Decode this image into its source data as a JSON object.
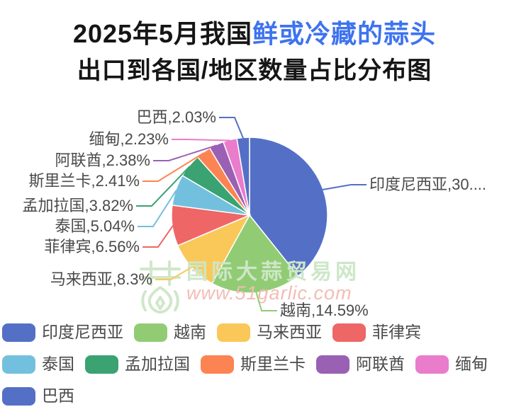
{
  "title": {
    "line1_black": "2025年5月我国",
    "line1_blue": "鲜或冷藏的蒜头",
    "line2": "出口到各国/地区数量占比分布图"
  },
  "watermark": {
    "site_name": "国际大蒜贸易网",
    "site_url": "www.51garlic.com"
  },
  "chart_data": {
    "type": "pie",
    "unit": "%",
    "start_angle": "top",
    "direction": "clockwise",
    "title": "2025年5月我国鲜或冷藏的蒜头出口到各国/地区数量占比分布图",
    "items": [
      {
        "id": "indonesia",
        "name": "印度尼西亚",
        "value": 30.64,
        "label": "印度尼西亚,30....",
        "color": "#5470c6"
      },
      {
        "id": "vietnam",
        "name": "越南",
        "value": 14.59,
        "label": "越南,14.59%",
        "color": "#91cc75"
      },
      {
        "id": "malaysia",
        "name": "马来西亚",
        "value": 8.3,
        "label": "马来西亚,8.3%",
        "color": "#fac858"
      },
      {
        "id": "philippines",
        "name": "菲律宾",
        "value": 6.56,
        "label": "菲律宾,6.56%",
        "color": "#ee6666"
      },
      {
        "id": "thailand",
        "name": "泰国",
        "value": 5.04,
        "label": "泰国,5.04%",
        "color": "#73c0de"
      },
      {
        "id": "bangladesh",
        "name": "孟加拉国",
        "value": 3.82,
        "label": "孟加拉国,3.82%",
        "color": "#3ba272"
      },
      {
        "id": "srilanka",
        "name": "斯里兰卡",
        "value": 2.41,
        "label": "斯里兰卡,2.41%",
        "color": "#fc8452"
      },
      {
        "id": "uae",
        "name": "阿联酋",
        "value": 2.38,
        "label": "阿联酋,2.38%",
        "color": "#9a60b4"
      },
      {
        "id": "myanmar",
        "name": "缅甸",
        "value": 2.23,
        "label": "缅甸,2.23%",
        "color": "#ea7ccc"
      },
      {
        "id": "brazil",
        "name": "巴西",
        "value": 2.03,
        "label": "巴西,2.03%",
        "color": "#5470c6"
      }
    ]
  }
}
